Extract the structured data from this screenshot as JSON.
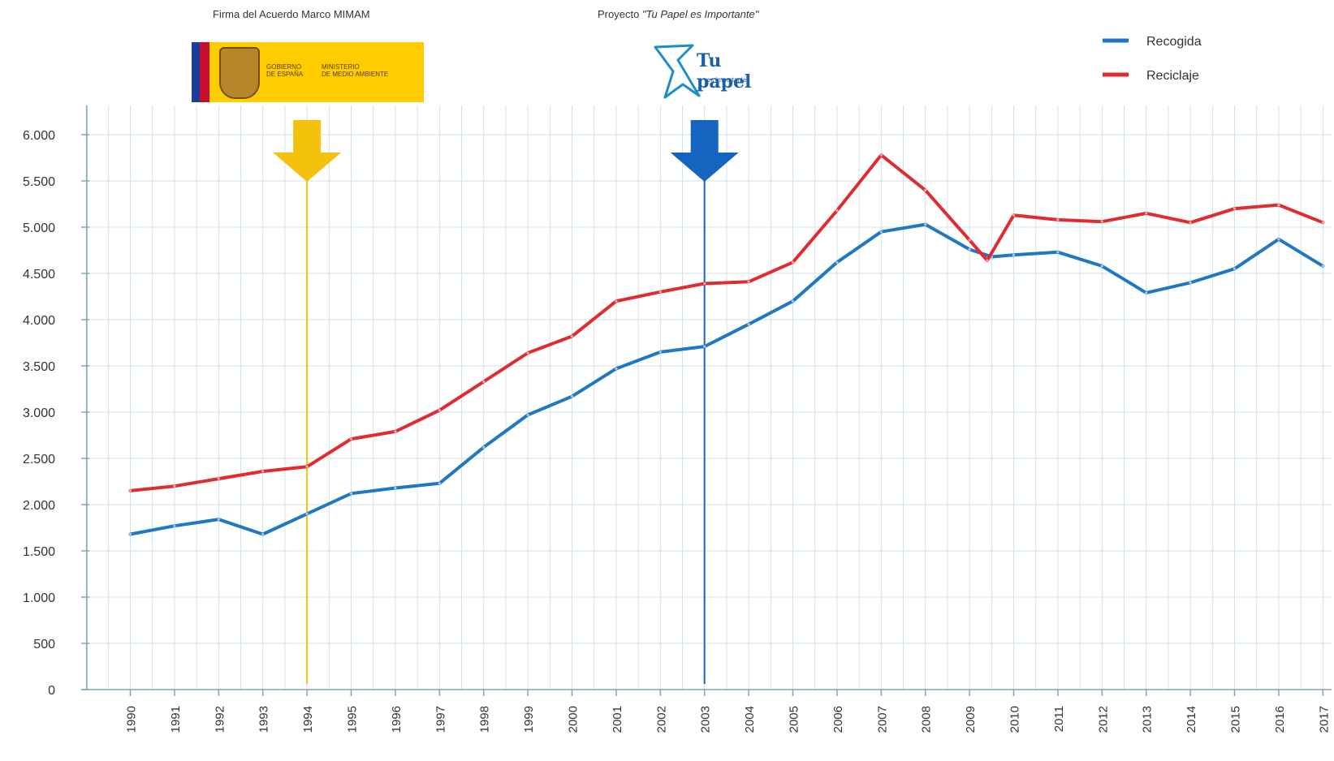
{
  "annotations": {
    "left_title": "Firma del Acuerdo Marco MIMAM",
    "right_title_prefix": "Proyecto ",
    "right_title_italic": "\"Tu Papel es Importante\"",
    "gob_logo_text_1a": "GOBIERNO",
    "gob_logo_text_1b": "DE ESPAÑA",
    "gob_logo_text_2a": "MINISTERIO",
    "gob_logo_text_2b": "DE MEDIO AMBIENTE",
    "tp_logo_name": "Tu papel",
    "tp_logo_sub": "es importante",
    "marker_years": [
      1994,
      2003
    ],
    "marker_colors": [
      "#f4c20d",
      "#1565c0"
    ]
  },
  "colors": {
    "recogida": "#1f78c1",
    "reciclaje": "#e02b2f",
    "grid": "#cfe3ea",
    "axis": "#7fa8b4"
  },
  "chart_data": {
    "type": "line",
    "title": "",
    "xlabel": "",
    "ylabel": "",
    "x": [
      1990,
      1991,
      1992,
      1993,
      1994,
      1995,
      1996,
      1997,
      1998,
      1999,
      2000,
      2001,
      2002,
      2003,
      2004,
      2005,
      2006,
      2007,
      2008,
      2009,
      2010,
      2011,
      2012,
      2013,
      2014,
      2015,
      2016,
      2017
    ],
    "x_tick_labels": [
      "1990",
      "1991",
      "1992",
      "1993",
      "1994",
      "1995",
      "1996",
      "1997",
      "1998",
      "1999",
      "2000",
      "2001",
      "2002",
      "2003",
      "2004",
      "2005",
      "2006",
      "2007",
      "2008",
      "2009",
      "2010",
      "2011",
      "2012",
      "2013",
      "2014",
      "2015",
      "2016",
      "2017"
    ],
    "ylim": [
      0,
      6000
    ],
    "y_ticks": [
      0,
      500,
      1000,
      1500,
      2000,
      2500,
      3000,
      3500,
      4000,
      4500,
      5000,
      5500,
      6000
    ],
    "y_tick_labels": [
      "0",
      "500",
      "1.000",
      "1.500",
      "2.000",
      "2.500",
      "3.000",
      "3.500",
      "4.000",
      "4.500",
      "5.000",
      "5.500",
      "6.000"
    ],
    "grid": true,
    "legend": "top-right",
    "series": [
      {
        "name": "Recogida",
        "points": [
          [
            1990,
            1680
          ],
          [
            1991,
            1770
          ],
          [
            1992,
            1840
          ],
          [
            1993,
            1680
          ],
          [
            1994,
            1900
          ],
          [
            1995,
            2120
          ],
          [
            1996,
            2180
          ],
          [
            1997,
            2230
          ],
          [
            1998,
            2620
          ],
          [
            1999,
            2970
          ],
          [
            2000,
            3170
          ],
          [
            2001,
            3470
          ],
          [
            2002,
            3650
          ],
          [
            2003,
            3710
          ],
          [
            2004,
            3950
          ],
          [
            2005,
            4200
          ],
          [
            2006,
            4620
          ],
          [
            2007,
            4950
          ],
          [
            2008,
            5030
          ],
          [
            2009,
            4760
          ],
          [
            2009.5,
            4680
          ],
          [
            2010,
            4700
          ],
          [
            2011,
            4730
          ],
          [
            2012,
            4580
          ],
          [
            2013,
            4290
          ],
          [
            2014,
            4400
          ],
          [
            2015,
            4550
          ],
          [
            2016,
            4870
          ],
          [
            2017,
            4580
          ]
        ]
      },
      {
        "name": "Reciclaje",
        "points": [
          [
            1990,
            2150
          ],
          [
            1991,
            2200
          ],
          [
            1992,
            2280
          ],
          [
            1993,
            2360
          ],
          [
            1994,
            2410
          ],
          [
            1995,
            2710
          ],
          [
            1996,
            2790
          ],
          [
            1997,
            3020
          ],
          [
            1998,
            3330
          ],
          [
            1999,
            3640
          ],
          [
            2000,
            3820
          ],
          [
            2001,
            4200
          ],
          [
            2002,
            4300
          ],
          [
            2003,
            4390
          ],
          [
            2004,
            4410
          ],
          [
            2005,
            4620
          ],
          [
            2006,
            5180
          ],
          [
            2007,
            5780
          ],
          [
            2008,
            5400
          ],
          [
            2009,
            4860
          ],
          [
            2009.4,
            4640
          ],
          [
            2010,
            5130
          ],
          [
            2011,
            5080
          ],
          [
            2012,
            5060
          ],
          [
            2013,
            5150
          ],
          [
            2014,
            5050
          ],
          [
            2015,
            5200
          ],
          [
            2016,
            5240
          ],
          [
            2017,
            5050
          ]
        ]
      }
    ]
  }
}
